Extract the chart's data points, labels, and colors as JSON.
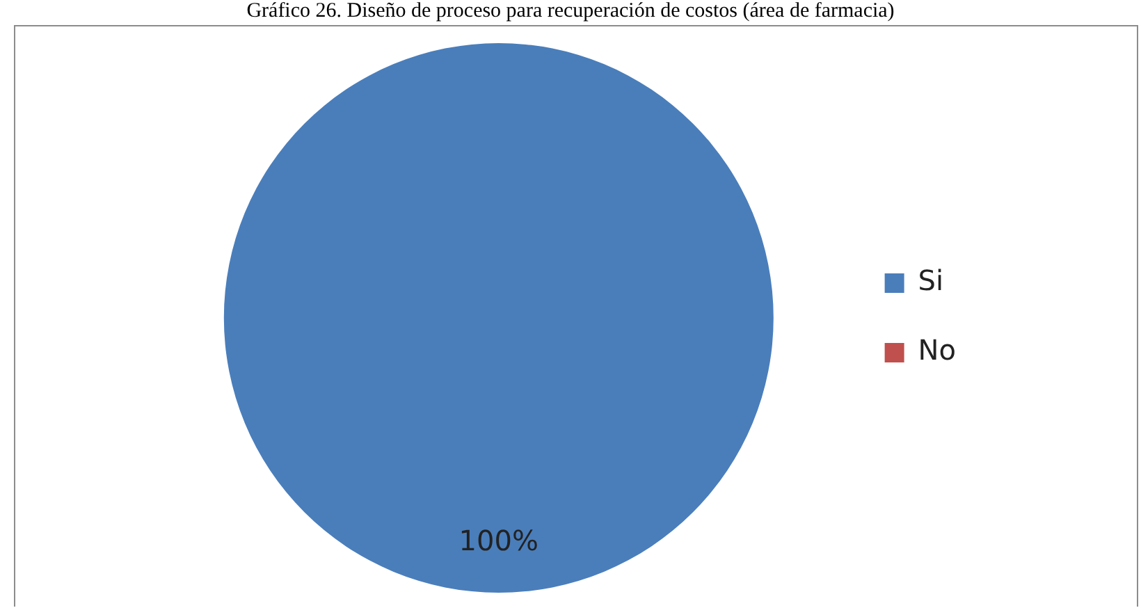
{
  "chart_data": {
    "type": "pie",
    "title": "Gráfico 26. Diseño de proceso para recuperación de costos (área de farmacia)",
    "categories": [
      "Si",
      "No"
    ],
    "values": [
      100,
      0
    ],
    "colors": [
      "#4a7ebb",
      "#c0504d"
    ],
    "value_labels": [
      "100%",
      null
    ],
    "legend": "right"
  }
}
